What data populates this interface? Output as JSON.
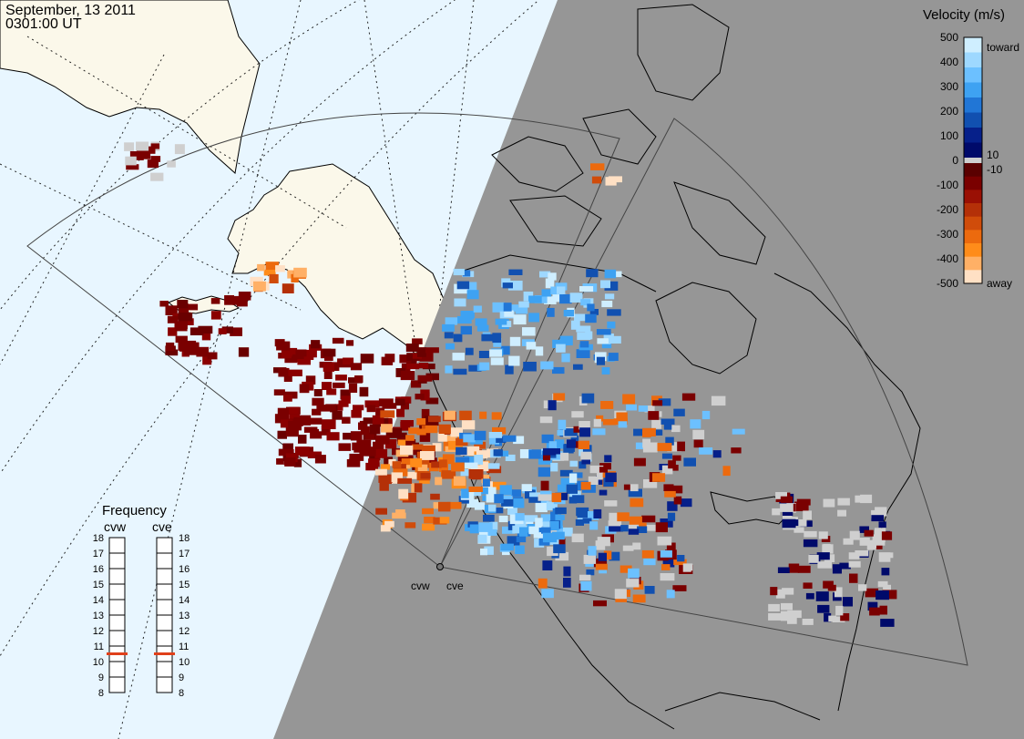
{
  "header": {
    "date": "September, 13 2011",
    "time": "0301:00 UT"
  },
  "radars": [
    "cvw",
    "cve"
  ],
  "colors": {
    "ocean": "#e8f6ff",
    "land_day": "#fbf8ea",
    "night_shade": "#969696",
    "ground_scatter": "#cfcfcf"
  },
  "velocity_scale": {
    "title": "Velocity (m/s)",
    "toward_label": "toward",
    "away_label": "away",
    "ticks": [
      500,
      400,
      300,
      200,
      100,
      0,
      -100,
      -200,
      -300,
      -400,
      -500
    ],
    "inner_ticks": [
      10,
      -10
    ],
    "colors_toward": [
      "#cfeeff",
      "#9ed8ff",
      "#6cc0ff",
      "#3ea2f2",
      "#2176d6",
      "#1150b0",
      "#06208a",
      "#000a6a"
    ],
    "colors_away": [
      "#5a0000",
      "#7a0000",
      "#9a1004",
      "#b43008",
      "#d04c0a",
      "#ec6a0e",
      "#ff8c1a",
      "#ffb066",
      "#ffe0c4"
    ]
  },
  "frequency": {
    "title": "Frequency",
    "radars": [
      {
        "name": "cvw",
        "value": 10.5
      },
      {
        "name": "cve",
        "value": 10.5
      }
    ],
    "ticks": [
      18,
      17,
      16,
      15,
      14,
      13,
      12,
      11,
      10,
      9,
      8
    ]
  }
}
